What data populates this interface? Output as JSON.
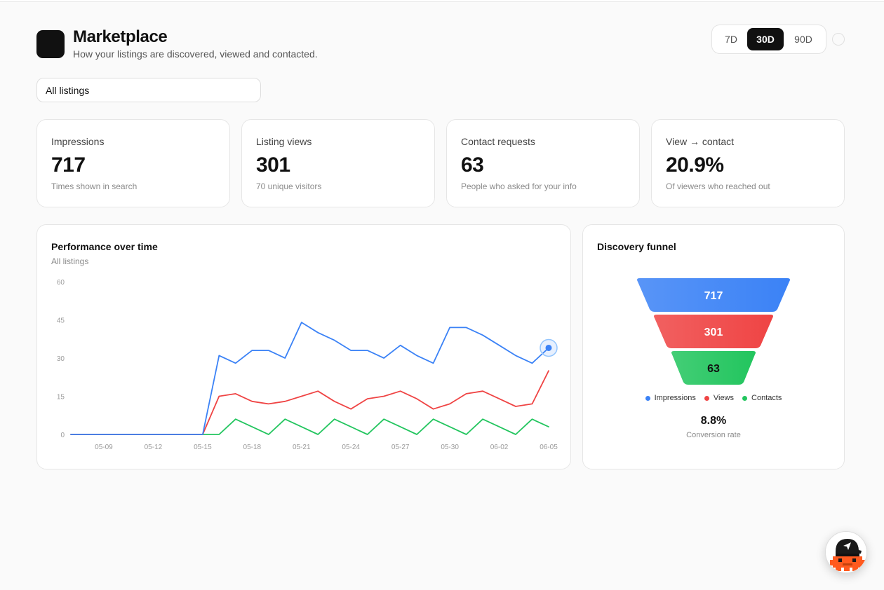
{
  "header": {
    "title": "Marketplace",
    "subtitle": "How your listings are discovered, viewed and contacted."
  },
  "range": {
    "options": [
      "7D",
      "30D",
      "90D"
    ],
    "selected": "30D"
  },
  "filter": {
    "selected": "All listings"
  },
  "stats": [
    {
      "label": "Impressions",
      "value": "717",
      "sub": "Times shown in search"
    },
    {
      "label": "Listing views",
      "value": "301",
      "sub": "70 unique visitors"
    },
    {
      "label": "Contact requests",
      "value": "63",
      "sub": "People who asked for your info"
    },
    {
      "label": "View → contact",
      "value": "20.9%",
      "sub": "Of viewers who reached out"
    }
  ],
  "performance": {
    "title": "Performance over time",
    "subtitle": "All listings"
  },
  "funnel": {
    "title": "Discovery funnel",
    "conversion_value": "8.8%",
    "conversion_label": "Conversion rate"
  },
  "colors": {
    "impressions": "#3b82f6",
    "views": "#ef4444",
    "contacts": "#22c55e",
    "accent": "#111111"
  },
  "icons": {
    "avatar": "pixel-character-avatar-icon"
  },
  "chart_data": [
    {
      "type": "line",
      "title": "Performance over time",
      "subtitle": "All listings",
      "x": [
        "05-07",
        "05-08",
        "05-09",
        "05-10",
        "05-11",
        "05-12",
        "05-13",
        "05-14",
        "05-15",
        "05-16",
        "05-17",
        "05-18",
        "05-19",
        "05-20",
        "05-21",
        "05-22",
        "05-23",
        "05-24",
        "05-25",
        "05-26",
        "05-27",
        "05-28",
        "05-29",
        "05-30",
        "05-31",
        "06-01",
        "06-02",
        "06-03",
        "06-04",
        "06-05"
      ],
      "xticks": [
        "05-09",
        "05-12",
        "05-15",
        "05-18",
        "05-21",
        "05-24",
        "05-27",
        "05-30",
        "06-02",
        "06-05"
      ],
      "yticks": [
        0,
        15,
        30,
        45,
        60
      ],
      "ylim": [
        0,
        60
      ],
      "series": [
        {
          "name": "Impressions",
          "color": "#3b82f6",
          "values": [
            0,
            0,
            0,
            0,
            0,
            0,
            0,
            0,
            0,
            31,
            28,
            33,
            33,
            30,
            44,
            40,
            37,
            33,
            33,
            30,
            35,
            31,
            28,
            42,
            42,
            39,
            35,
            31,
            28,
            34
          ]
        },
        {
          "name": "Views",
          "color": "#ef4444",
          "values": [
            0,
            0,
            0,
            0,
            0,
            0,
            0,
            0,
            0,
            15,
            16,
            13,
            12,
            13,
            15,
            17,
            13,
            10,
            14,
            15,
            17,
            14,
            10,
            12,
            16,
            17,
            14,
            11,
            12,
            25
          ]
        },
        {
          "name": "Contacts",
          "color": "#22c55e",
          "values": [
            0,
            0,
            0,
            0,
            0,
            0,
            0,
            0,
            0,
            0,
            6,
            3,
            0,
            6,
            3,
            0,
            6,
            3,
            0,
            6,
            3,
            0,
            6,
            3,
            0,
            6,
            3,
            0,
            6,
            3
          ]
        }
      ],
      "grid": false,
      "highlight_point": {
        "series": "Impressions",
        "x": "06-05"
      }
    },
    {
      "type": "bar",
      "chart_kind": "funnel",
      "title": "Discovery funnel",
      "categories": [
        "Impressions",
        "Views",
        "Contacts"
      ],
      "values": [
        717,
        301,
        63
      ],
      "colors": [
        "#3b82f6",
        "#ef4444",
        "#22c55e"
      ],
      "legend": "bottom-center"
    }
  ]
}
